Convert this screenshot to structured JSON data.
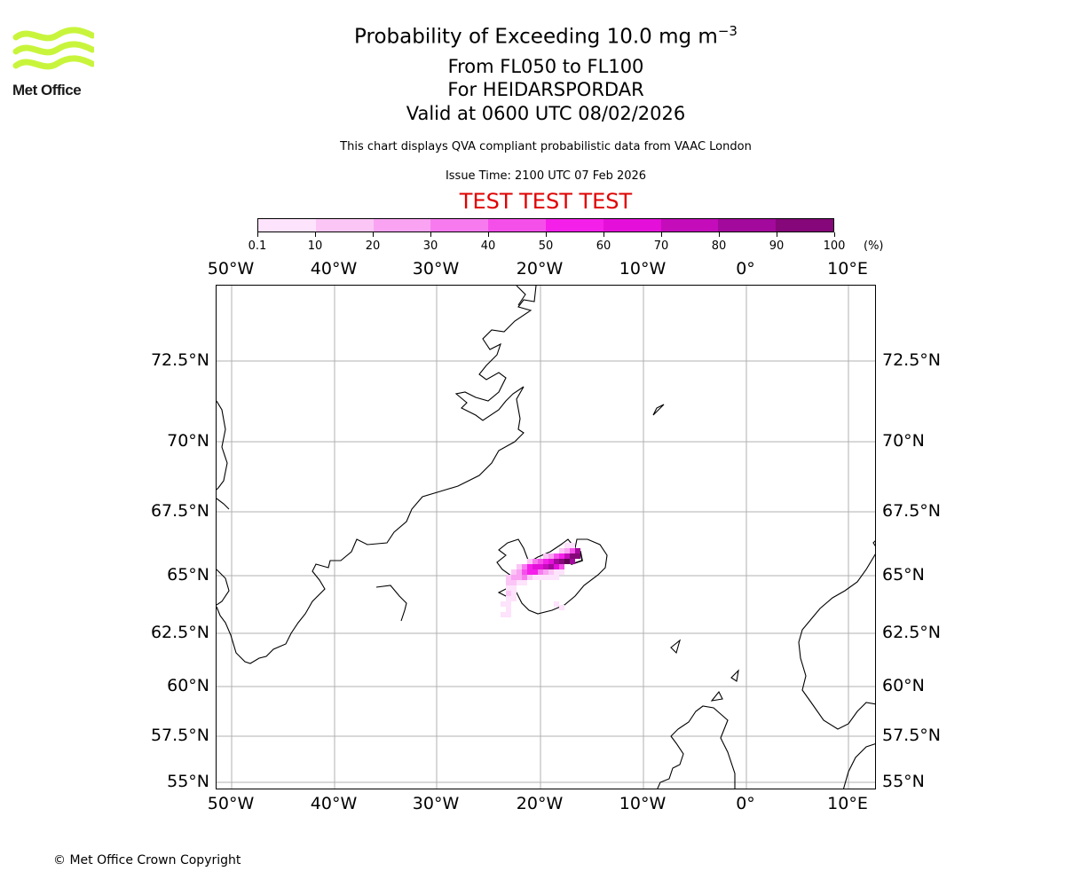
{
  "logo": {
    "text": "Met Office",
    "color": "#c8f53c"
  },
  "title": {
    "line1_main": "Probability of Exceeding 10.0 mg m",
    "line1_exp": "−3",
    "line2": "From FL050 to FL100",
    "line3": "For HEIDARSPORDAR",
    "line4": "Valid at 0600 UTC 08/02/2026"
  },
  "subtitle": "This chart displays QVA compliant probabilistic data from VAAC London",
  "issue_time": "Issue Time: 2100 UTC 07 Feb 2026",
  "test_banner": "TEST TEST TEST",
  "colorbar": {
    "labels": [
      "0.1",
      "10",
      "20",
      "30",
      "40",
      "50",
      "60",
      "70",
      "80",
      "90",
      "100"
    ],
    "unit": "(%)",
    "colors": [
      "#fde3fb",
      "#fbc6f6",
      "#f9a3f2",
      "#f77bee",
      "#f54fea",
      "#f51fea",
      "#e40fd9",
      "#c40cbb",
      "#a3099c",
      "#850779",
      "#5e0452"
    ]
  },
  "map": {
    "lon_labels": [
      "50°W",
      "40°W",
      "30°W",
      "20°W",
      "10°W",
      "0°",
      "10°E"
    ],
    "lat_labels": [
      "72.5°N",
      "70°N",
      "67.5°N",
      "65°N",
      "62.5°N",
      "60°N",
      "57.5°N",
      "55°N"
    ],
    "gridline_color": "#b0b0b0"
  },
  "copyright": "© Met Office Crown Copyright"
}
